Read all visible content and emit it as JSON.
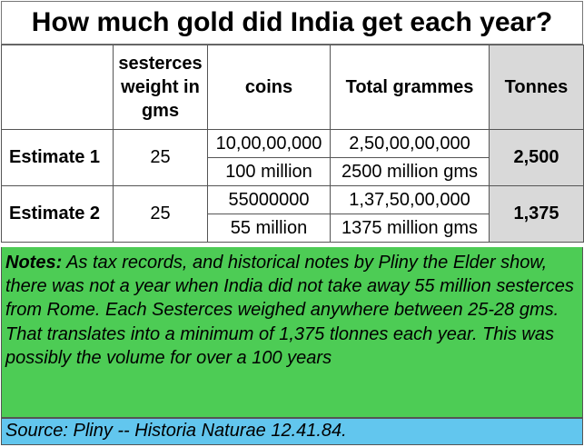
{
  "title": "How much gold did India get each year?",
  "headers": {
    "blank": "",
    "weight": "sesterces weight in gms",
    "coins": "coins",
    "grammes": "Total grammes",
    "tonnes": "Tonnes"
  },
  "rows": [
    {
      "label": "Estimate 1",
      "weight": "25",
      "coins_a": "10,00,00,000",
      "coins_b": "100 million",
      "grammes_a": "2,50,00,00,000",
      "grammes_b": "2500 million gms",
      "tonnes": "2,500"
    },
    {
      "label": "Estimate 2",
      "weight": "25",
      "coins_a": "55000000",
      "coins_b": "55 million",
      "grammes_a": "1,37,50,00,000",
      "grammes_b": "1375 million gms",
      "tonnes": "1,375"
    }
  ],
  "notes": {
    "label": "Notes:",
    "text": "As tax records, and historical notes by Pliny the Elder show, there was not a year when India did not take away 55 million sesterces from Rome.  Each Sesterces weighed anywhere between 25-28 gms. That translates into a minimum of 1,375 tlonnes each year.  This was possibly the volume for over a 100 years"
  },
  "source": "Source: Pliny -- Historia Naturae 12.41.84.",
  "colors": {
    "notes_bg": "#4dcc55",
    "source_bg": "#62c6ee",
    "tonnes_bg": "#d9d9d9"
  }
}
